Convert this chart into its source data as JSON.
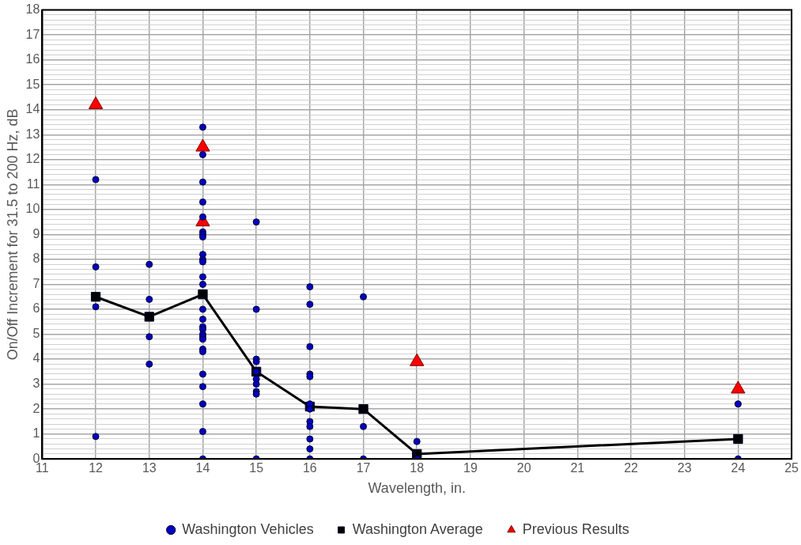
{
  "chart_data": {
    "type": "scatter",
    "xlabel": "Wavelength, in.",
    "ylabel": "On/Off Increment for 31.5 to 200 Hz, dB",
    "xlim": [
      11,
      25
    ],
    "xticks": [
      11,
      12,
      13,
      14,
      15,
      16,
      17,
      18,
      19,
      20,
      21,
      22,
      23,
      24,
      25
    ],
    "ylim": [
      0,
      18
    ],
    "yticks": [
      0,
      {
        "value": 0.2,
        "label": null
      },
      {
        "value": 0.4,
        "label": null
      },
      {
        "value": 0.6,
        "label": null
      },
      {
        "value": 0.8,
        "label": null
      },
      1,
      {
        "value": 1.2,
        "label": null
      },
      {
        "value": 1.4,
        "label": null
      },
      {
        "value": 1.6,
        "label": null
      },
      {
        "value": 1.8,
        "label": null
      },
      2,
      {
        "value": 2.2,
        "label": null
      },
      {
        "value": 2.4,
        "label": null
      },
      {
        "value": 2.6,
        "label": null
      },
      {
        "value": 2.8,
        "label": null
      },
      3,
      {
        "value": 3.2,
        "label": null
      },
      {
        "value": 3.4,
        "label": null
      },
      {
        "value": 3.6,
        "label": null
      },
      {
        "value": 3.8,
        "label": null
      },
      4,
      {
        "value": 4.2,
        "label": null
      },
      {
        "value": 4.4,
        "label": null
      },
      {
        "value": 4.6,
        "label": null
      },
      {
        "value": 4.8,
        "label": null
      },
      5,
      {
        "value": 5.2,
        "label": null
      },
      {
        "value": 5.4,
        "label": null
      },
      {
        "value": 5.6,
        "label": null
      },
      {
        "value": 5.8,
        "label": null
      },
      6,
      {
        "value": 6.2,
        "label": null
      },
      {
        "value": 6.4,
        "label": null
      },
      {
        "value": 6.6,
        "label": null
      },
      {
        "value": 6.8,
        "label": null
      },
      7,
      {
        "value": 7.2,
        "label": null
      },
      {
        "value": 7.4,
        "label": null
      },
      {
        "value": 7.6,
        "label": null
      },
      {
        "value": 7.8,
        "label": null
      },
      8,
      {
        "value": 8.2,
        "label": null
      },
      {
        "value": 8.4,
        "label": null
      },
      {
        "value": 8.6,
        "label": null
      },
      {
        "value": 8.8,
        "label": null
      },
      9,
      {
        "value": 9.2,
        "label": null
      },
      {
        "value": 9.4,
        "label": null
      },
      {
        "value": 9.6,
        "label": null
      },
      {
        "value": 9.8,
        "label": null
      },
      10,
      {
        "value": 10.2,
        "label": null
      },
      {
        "value": 10.4,
        "label": null
      },
      {
        "value": 10.6,
        "label": null
      },
      {
        "value": 10.8,
        "label": null
      },
      11,
      {
        "value": 11.2,
        "label": null
      },
      {
        "value": 11.4,
        "label": null
      },
      {
        "value": 11.6,
        "label": null
      },
      {
        "value": 11.8,
        "label": null
      },
      12,
      {
        "value": 12.2,
        "label": null
      },
      {
        "value": 12.4,
        "label": null
      },
      {
        "value": 12.6,
        "label": null
      },
      {
        "value": 12.8,
        "label": null
      },
      13,
      {
        "value": 13.2,
        "label": null
      },
      {
        "value": 13.4,
        "label": null
      },
      {
        "value": 13.6,
        "label": null
      },
      {
        "value": 13.8,
        "label": null
      },
      14,
      {
        "value": 14.2,
        "label": null
      },
      {
        "value": 14.4,
        "label": null
      },
      {
        "value": 14.6,
        "label": null
      },
      {
        "value": 14.8,
        "label": null
      },
      15,
      {
        "value": 15.2,
        "label": null
      },
      {
        "value": 15.4,
        "label": null
      },
      {
        "value": 15.6,
        "label": null
      },
      {
        "value": 15.8,
        "label": null
      },
      16,
      {
        "value": 16.2,
        "label": null
      },
      {
        "value": 16.4,
        "label": null
      },
      {
        "value": 16.6,
        "label": null
      },
      {
        "value": 16.8,
        "label": null
      },
      17,
      {
        "value": 17.2,
        "label": null
      },
      {
        "value": 17.4,
        "label": null
      },
      {
        "value": 17.6,
        "label": null
      },
      {
        "value": 17.8,
        "label": null
      },
      18
    ],
    "grid": true,
    "legend": "bottom",
    "series": [
      {
        "name": "Washington Vehicles",
        "marker": "circle",
        "color": "#0000c0",
        "x": [
          12,
          12,
          12,
          12,
          13,
          13,
          13,
          13,
          14,
          14,
          14,
          14,
          14,
          14,
          14,
          14,
          14,
          14,
          14,
          14,
          14,
          14,
          14,
          14,
          14,
          14,
          14,
          14,
          14,
          14,
          14,
          14,
          14,
          14,
          14,
          15,
          15,
          15,
          15,
          15,
          15,
          15,
          15,
          15,
          15,
          16,
          16,
          16,
          16,
          16,
          16,
          16,
          16,
          16,
          16,
          16,
          16,
          17,
          17,
          17,
          18,
          18,
          24,
          24
        ],
        "values": [
          11.2,
          7.7,
          6.1,
          0.9,
          7.8,
          6.4,
          4.9,
          3.8,
          13.3,
          12.2,
          11.1,
          10.3,
          9.7,
          9.1,
          9.0,
          8.9,
          8.2,
          8.0,
          7.9,
          7.3,
          7.0,
          6.0,
          5.6,
          5.3,
          5.2,
          5.0,
          4.9,
          4.8,
          4.4,
          4.3,
          3.4,
          2.9,
          2.2,
          1.1,
          0,
          9.5,
          6.0,
          4.0,
          3.9,
          3.5,
          3.2,
          3.0,
          2.7,
          2.6,
          0,
          6.9,
          6.2,
          4.5,
          3.4,
          3.3,
          2.2,
          2.0,
          1.5,
          1.3,
          0.8,
          0.4,
          0,
          6.5,
          1.3,
          0,
          0.7,
          0,
          2.2,
          0
        ]
      },
      {
        "name": "Washington Average",
        "type": "line",
        "marker": "square",
        "line_style": "solid",
        "color": "#000000",
        "x": [
          12,
          13,
          14,
          15,
          16,
          17,
          18,
          24
        ],
        "values": [
          6.5,
          5.7,
          6.6,
          3.5,
          2.1,
          2.0,
          0.2,
          0.8
        ]
      },
      {
        "name": "Previous Results",
        "marker": "triangle",
        "color": "#ff0000",
        "x": [
          12,
          14,
          14,
          18,
          24
        ],
        "values": [
          14.2,
          12.5,
          9.5,
          3.9,
          2.8
        ]
      }
    ]
  }
}
